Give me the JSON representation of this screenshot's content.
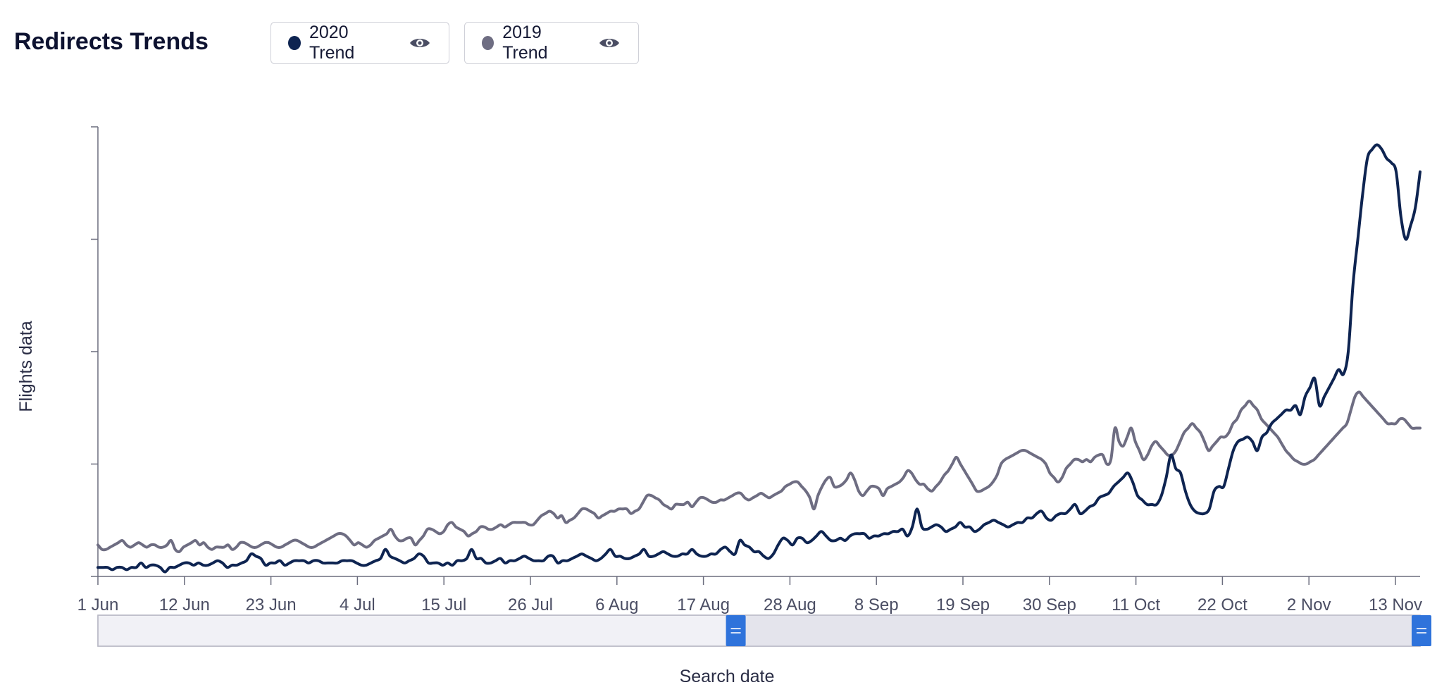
{
  "header": {
    "title": "Redirects Trends",
    "legend": [
      {
        "label": "2020 Trend",
        "color": "#0e2451",
        "icon": "eye-icon"
      },
      {
        "label": "2019 Trend",
        "color": "#6e6d82",
        "icon": "eye-icon"
      }
    ]
  },
  "chart_data": {
    "type": "line",
    "xlabel": "Search date",
    "ylabel": "Flights data",
    "x_tick_labels": [
      "1 Jun",
      "12 Jun",
      "23 Jun",
      "4 Jul",
      "15 Jul",
      "26 Jul",
      "6 Aug",
      "17 Aug",
      "28 Aug",
      "8 Sep",
      "19 Sep",
      "30 Sep",
      "11 Oct",
      "22 Oct",
      "2 Nov",
      "13 Nov"
    ],
    "x_range": [
      "1 Jun",
      "16 Nov"
    ],
    "y_tick_count": 5,
    "y_range": [
      0,
      100
    ],
    "grid": false,
    "legend_placement": "top",
    "range_selector": {
      "start_fraction": 0.475,
      "end_fraction": 1.0
    },
    "series": [
      {
        "name": "2020 Trend",
        "color": "#0e2451",
        "values": [
          2,
          2,
          2,
          1.5,
          2,
          2,
          1.5,
          2,
          2,
          3,
          2,
          2.5,
          2.5,
          2,
          1,
          2,
          2,
          2.5,
          3,
          3,
          2.5,
          3,
          2.5,
          2.5,
          3,
          3.5,
          3,
          2,
          2.5,
          2.5,
          3,
          3.5,
          5,
          4.5,
          4,
          2.5,
          3,
          3,
          3.5,
          2.5,
          3,
          3.5,
          3.5,
          3.5,
          3,
          3.5,
          3.5,
          3,
          3,
          3,
          3,
          3.5,
          3.5,
          3.5,
          3,
          2.5,
          2.5,
          3,
          3.5,
          4,
          6,
          4.5,
          4,
          3.5,
          3,
          3.5,
          4,
          5,
          4.5,
          3,
          3,
          3,
          2.5,
          3,
          2.5,
          3.5,
          3.5,
          4,
          6,
          4,
          4,
          3,
          3,
          3.5,
          4,
          3,
          3.5,
          3.5,
          4,
          4.5,
          4,
          3.5,
          3.5,
          3.5,
          4.5,
          4.5,
          3,
          3.5,
          3.5,
          4,
          4.5,
          5,
          4.5,
          4,
          3.5,
          4,
          5,
          6,
          4.5,
          4.5,
          4,
          4,
          4.5,
          5,
          6,
          4.5,
          4.5,
          5,
          5.5,
          5,
          4.5,
          4.5,
          5,
          5,
          6,
          5,
          4.5,
          4.5,
          5,
          5,
          6,
          6.5,
          5.5,
          5,
          8,
          7,
          6.5,
          5.5,
          5.5,
          4.5,
          4,
          5,
          7,
          8.5,
          8,
          7,
          8.5,
          8.5,
          7.5,
          8,
          9,
          10,
          9,
          8,
          8,
          8.5,
          8,
          9,
          9.5,
          9.5,
          9.5,
          8.5,
          9,
          9,
          9.5,
          9.5,
          10,
          10,
          10.5,
          9,
          11,
          15,
          11,
          10.5,
          11,
          11.5,
          11,
          10,
          10.5,
          11,
          12,
          11,
          11,
          10,
          10.5,
          11.5,
          12,
          12.5,
          12,
          11.5,
          11,
          11.5,
          12,
          12,
          13,
          13,
          14,
          14.5,
          13,
          12.5,
          13.5,
          14,
          14,
          15,
          16,
          14,
          14.5,
          15.5,
          16,
          17.5,
          18,
          18.5,
          20,
          21,
          22,
          23,
          21,
          18,
          17,
          16,
          16,
          16,
          18,
          22,
          27,
          24,
          23,
          19,
          16,
          14.5,
          14,
          14,
          15,
          19,
          20,
          20,
          24,
          28,
          30,
          30.5,
          31,
          30,
          28,
          31,
          32,
          34,
          35,
          36,
          37,
          37,
          38,
          36,
          40,
          42,
          44,
          38,
          40,
          42,
          44,
          46,
          45,
          50,
          65,
          75,
          85,
          93,
          95,
          96,
          95,
          93,
          92,
          90,
          80,
          75,
          78,
          82,
          90
        ]
      },
      {
        "name": "2019 Trend",
        "color": "#6e6d82",
        "values": [
          7,
          6,
          6,
          6.5,
          7,
          7.5,
          8,
          7,
          6.5,
          7,
          7.5,
          7,
          6.5,
          7,
          7,
          6.5,
          6.5,
          7,
          8,
          6,
          5.5,
          6.5,
          7,
          7.5,
          8,
          7,
          7.5,
          6.5,
          6,
          6.5,
          6.5,
          6.5,
          7,
          6,
          6.5,
          7.5,
          7.5,
          7,
          6.5,
          6.5,
          7,
          7.5,
          7.5,
          7,
          6.5,
          6.5,
          7,
          7.5,
          8,
          8,
          7.5,
          7,
          6.5,
          6.5,
          7,
          7.5,
          8,
          8.5,
          9,
          9.5,
          9.5,
          9,
          8,
          7,
          7.5,
          7,
          6.5,
          7,
          8,
          8.5,
          9,
          9.5,
          10.5,
          9,
          8,
          8,
          8.5,
          8.5,
          7,
          8,
          9,
          10.5,
          10.5,
          10,
          9.5,
          10,
          11.5,
          12,
          11,
          10.5,
          10,
          9,
          9.5,
          10,
          11,
          11,
          10.5,
          10.5,
          11,
          11.5,
          11,
          11.5,
          12,
          12,
          12,
          12,
          11.5,
          11.5,
          12.5,
          13.5,
          14,
          14.5,
          14,
          13,
          13.5,
          12,
          12.5,
          13,
          14,
          15,
          15,
          14.5,
          14,
          13,
          13.5,
          14,
          14.5,
          14.5,
          15,
          15,
          15,
          14,
          14.5,
          15,
          16.5,
          18,
          18,
          17.5,
          17,
          16,
          15.5,
          15,
          16,
          16,
          16,
          16.5,
          15.5,
          16.5,
          17.5,
          17.5,
          17,
          16.5,
          16.5,
          17,
          17,
          17.5,
          18,
          18.5,
          18.5,
          17.5,
          17,
          17.5,
          18,
          18.5,
          18,
          17.5,
          18,
          18.5,
          19,
          20,
          20.5,
          21,
          21,
          20,
          19,
          17.5,
          15,
          18,
          20,
          21.5,
          22,
          20,
          20,
          20.5,
          21.5,
          23,
          21.5,
          19,
          18,
          19,
          20,
          20,
          19.5,
          18,
          19.5,
          20,
          20.5,
          21,
          22,
          23.5,
          23,
          21.5,
          20.5,
          20.5,
          19.5,
          19,
          20,
          21,
          22.5,
          23.5,
          25,
          26.5,
          25,
          23.5,
          22,
          20.5,
          19,
          19,
          19.5,
          20,
          21,
          22.5,
          25,
          26,
          26.5,
          27,
          27.5,
          28,
          28,
          27.5,
          27,
          26.5,
          26,
          25,
          23,
          22,
          21,
          22,
          24,
          25,
          26,
          26,
          25.5,
          26,
          25.5,
          26.5,
          27,
          27,
          25,
          26,
          33,
          30,
          29,
          31,
          33,
          30,
          28,
          26,
          27,
          29,
          30,
          29,
          28,
          27,
          27,
          28,
          30,
          32,
          33,
          34,
          33,
          32,
          30,
          28,
          29,
          30,
          31,
          31,
          32,
          34,
          35,
          37,
          38,
          39,
          38,
          37,
          35,
          34,
          33,
          32,
          31,
          29.5,
          28,
          27,
          26,
          25.5,
          25,
          25,
          25.5,
          26,
          27,
          28,
          29,
          30,
          31,
          32,
          33,
          34,
          37,
          40,
          41,
          40,
          39,
          38,
          37,
          36,
          35,
          34,
          34,
          34,
          35,
          35,
          34,
          33,
          33,
          33
        ]
      }
    ]
  }
}
